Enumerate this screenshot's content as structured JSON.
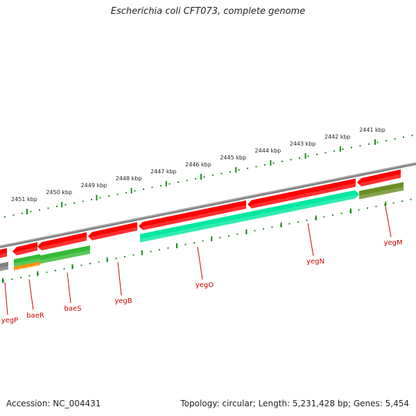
{
  "title": "Escherichia coli CFT073, complete genome",
  "footer": {
    "accession": "Accession: NC_004431",
    "summary": "Topology: circular; Length: 5,231,428 bp; Genes: 5,454"
  },
  "colors": {
    "backbone": "#808080",
    "forward_gene": "#ff0000",
    "reverse_gene_teal": "#00e8a0",
    "reverse_gene_green": "#33bb33",
    "reverse_gene_olive": "#6b8e23",
    "orange_feature": "#ff8c00",
    "tick": "#1a8a1a",
    "gene_label": "#cc0000"
  },
  "kbp_labels": [
    "2441 kbp",
    "2442 kbp",
    "2443 kbp",
    "2444 kbp",
    "2445 kbp",
    "2446 kbp",
    "2447 kbp",
    "2448 kbp",
    "2449 kbp",
    "2450 kbp",
    "2451 kbp"
  ],
  "genes": [
    {
      "name": "yegM",
      "strand": "reverse",
      "color": "olive"
    },
    {
      "name": "yegN",
      "strand": "reverse",
      "color": "teal"
    },
    {
      "name": "yegO",
      "strand": "reverse",
      "color": "teal"
    },
    {
      "name": "yegB",
      "strand": "forward",
      "color": "red"
    },
    {
      "name": "baeS",
      "strand": "reverse",
      "color": "green"
    },
    {
      "name": "baeR",
      "strand": "reverse",
      "color": "green"
    },
    {
      "name": "yegP",
      "strand": "forward",
      "color": "red"
    }
  ]
}
